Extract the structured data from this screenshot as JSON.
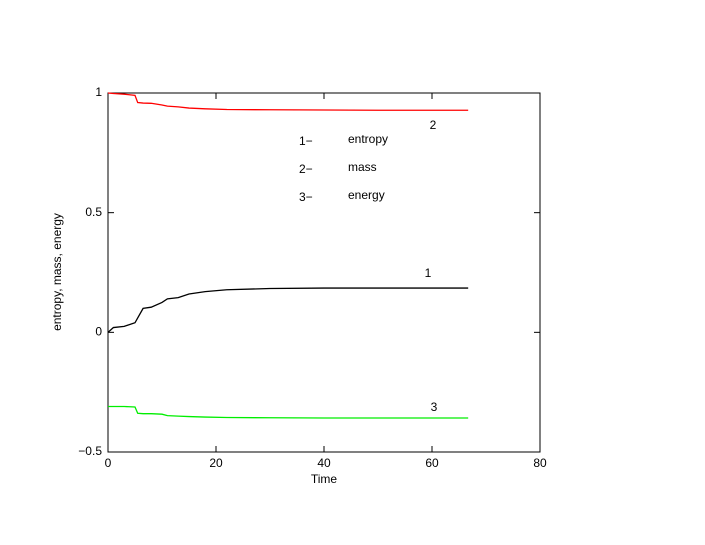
{
  "chart_data": {
    "type": "line",
    "xlabel": "Time",
    "ylabel": "entropy, mass, energy",
    "xlim": [
      0,
      80
    ],
    "ylim": [
      -0.5,
      1
    ],
    "xticks": [
      0,
      20,
      40,
      60,
      80
    ],
    "yticks": [
      {
        "value": -0.5,
        "label": "−0.5"
      },
      0,
      0.5,
      1
    ],
    "x": [
      0,
      1,
      3,
      5,
      5.5,
      6.5,
      8,
      10,
      11,
      13,
      15,
      18,
      22,
      30,
      40,
      50,
      66.7
    ],
    "series": [
      {
        "name": "entropy",
        "color": "#000000",
        "legend_key": "1−",
        "label": "1",
        "values": [
          0,
          0.02,
          0.025,
          0.04,
          0.06,
          0.1,
          0.105,
          0.125,
          0.14,
          0.145,
          0.16,
          0.17,
          0.178,
          0.183,
          0.185,
          0.185,
          0.185
        ]
      },
      {
        "name": "mass",
        "color": "#ff0000",
        "legend_key": "2−",
        "label": "2",
        "values": [
          1,
          0.998,
          0.995,
          0.99,
          0.96,
          0.958,
          0.957,
          0.95,
          0.945,
          0.942,
          0.937,
          0.934,
          0.931,
          0.93,
          0.929,
          0.928,
          0.928
        ]
      },
      {
        "name": "energy",
        "color": "#00ee00",
        "legend_key": "3−",
        "label": "3",
        "values": [
          -0.31,
          -0.31,
          -0.31,
          -0.312,
          -0.338,
          -0.34,
          -0.34,
          -0.342,
          -0.348,
          -0.35,
          -0.352,
          -0.354,
          -0.356,
          -0.357,
          -0.358,
          -0.358,
          -0.358
        ]
      }
    ]
  }
}
